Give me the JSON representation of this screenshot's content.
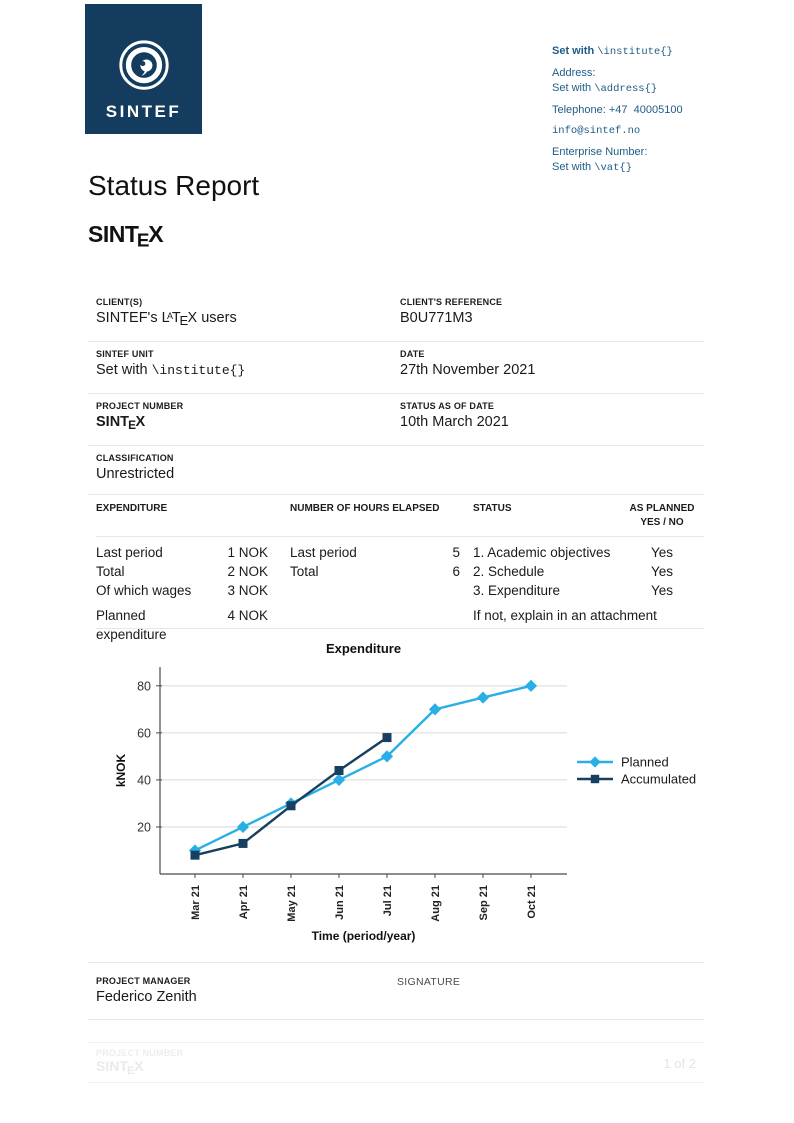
{
  "colors": {
    "navy": "#143C5E",
    "accent_blue": "#29AFE5",
    "contact_blue": "#1E5C86"
  },
  "logo": {
    "brand": "SINTEF"
  },
  "contact": {
    "institute_prefix": "Set with ",
    "institute_code": "\\institute{}",
    "address_label": "Address:",
    "address_prefix": "Set with ",
    "address_code": "\\address{}",
    "telephone": "Telephone: +47  40005100",
    "email": "info@sintef.no",
    "enterprise_label": "Enterprise Number:",
    "vat_prefix": "Set with ",
    "vat_code": "\\vat{}"
  },
  "title": "Status Report",
  "sintex": {
    "pre": "SINT",
    "e": "E",
    "x": "X"
  },
  "latex": {
    "l": "L",
    "a": "A",
    "t": "T",
    "e": "E",
    "x": "X"
  },
  "fields": {
    "clients_label": "CLIENT(S)",
    "clients_prefix": "SINTEF's ",
    "clients_suffix": " users",
    "reference_label": "CLIENT'S REFERENCE",
    "reference_value": "B0U771M3",
    "unit_label": "SINTEF UNIT",
    "unit_prefix": "Set with ",
    "unit_code": "\\institute{}",
    "date_label": "DATE",
    "date_value": "27th November 2021",
    "project_label": "PROJECT NUMBER",
    "status_date_label": "STATUS AS OF DATE",
    "status_date_value": "10th March 2021",
    "classification_label": "CLASSIFICATION",
    "classification_value": "Unrestricted"
  },
  "table": {
    "col_expenditure": "EXPENDITURE",
    "col_hours": "NUMBER OF HOURS ELAPSED",
    "col_status": "STATUS",
    "col_planned_line1": "AS PLANNED",
    "col_planned_line2": "YES / NO",
    "expenditure_rows": [
      {
        "label": "Last period",
        "value": "1 NOK"
      },
      {
        "label": "Total",
        "value": "2 NOK"
      },
      {
        "label": "Of which wages",
        "value": "3 NOK"
      }
    ],
    "planned_expenditure": {
      "label": "Planned expenditure",
      "value": "4 NOK"
    },
    "hours_rows": [
      {
        "label": "Last period",
        "value": "5"
      },
      {
        "label": "Total",
        "value": "6"
      }
    ],
    "status_rows": [
      {
        "label": "1. Academic objectives",
        "answer": "Yes"
      },
      {
        "label": "2. Schedule",
        "answer": "Yes"
      },
      {
        "label": "3. Expenditure",
        "answer": "Yes"
      }
    ],
    "status_note": "If not, explain in an attachment"
  },
  "chart_data": {
    "type": "line",
    "title": "Expenditure",
    "xlabel": "Time (period/year)",
    "ylabel": "kNOK",
    "categories": [
      "Mar 21",
      "Apr 21",
      "May 21",
      "Jun 21",
      "Jul 21",
      "Aug 21",
      "Sep 21",
      "Oct 21"
    ],
    "yticks": [
      20,
      40,
      60,
      80
    ],
    "ylim": [
      0,
      88
    ],
    "grid": true,
    "legend_position": "right",
    "series": [
      {
        "name": "Planned",
        "marker": "diamond",
        "color": "#29AFE5",
        "values": [
          10,
          20,
          30,
          40,
          50,
          70,
          75,
          80
        ]
      },
      {
        "name": "Accumulated",
        "marker": "square",
        "color": "#173F5F",
        "values": [
          8,
          13,
          29,
          44,
          58
        ]
      }
    ]
  },
  "signature": {
    "manager_label": "PROJECT MANAGER",
    "manager_value": "Federico Zenith",
    "signature_label": "SIGNATURE"
  },
  "footer": {
    "project_label": "PROJECT NUMBER",
    "page_indicator": "1 of 2"
  }
}
